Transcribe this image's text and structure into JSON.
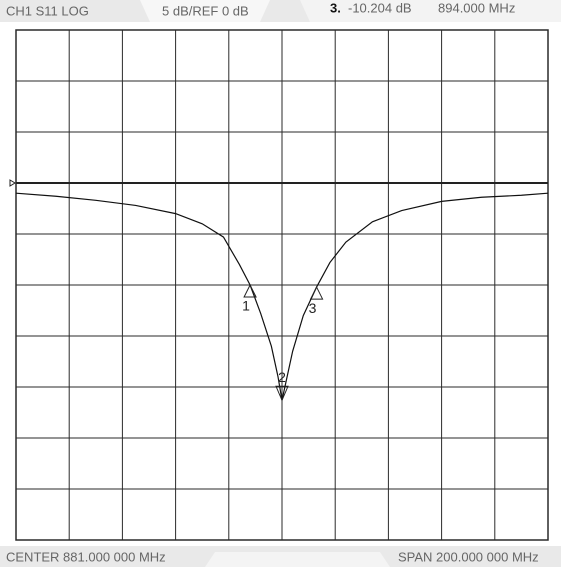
{
  "chart_data": {
    "type": "line",
    "channel_label": "CH1  S11  LOG",
    "scale_label": "5 dB/REF 0 dB",
    "readout": [
      "3.",
      "-10.204 dB",
      "894.000 MHz"
    ],
    "center_label": "CENTER 881.000 000 MHz",
    "span_label": "SPAN 200.000 000 MHz",
    "x": [
      781,
      796,
      811,
      826,
      841,
      851,
      859,
      865,
      869,
      873,
      877,
      879.5,
      881,
      882.5,
      885,
      889,
      894,
      899,
      905,
      915,
      926,
      941,
      956,
      971,
      981
    ],
    "values": [
      -1.0,
      -1.3,
      -1.7,
      -2.2,
      -3.0,
      -4.0,
      -5.3,
      -8.0,
      -10.0,
      -12.8,
      -16.0,
      -19.0,
      -21.3,
      -19.5,
      -16.5,
      -13.0,
      -10.204,
      -7.8,
      -5.8,
      -3.8,
      -2.7,
      -1.8,
      -1.4,
      -1.2,
      -1.0
    ],
    "color": "#111111",
    "markers": [
      {
        "label": "1",
        "x": 869,
        "value": -10.0
      },
      {
        "label": "2",
        "x": 881,
        "value": -21.3
      },
      {
        "label": "3",
        "x": 894,
        "value": -10.204
      }
    ],
    "reference": 0,
    "xlim": [
      781,
      981
    ],
    "xticks": [
      781,
      801,
      821,
      841,
      861,
      881,
      901,
      921,
      941,
      961,
      981
    ],
    "ylim": [
      -35,
      15
    ],
    "yticks": [
      -35,
      -30,
      -25,
      -20,
      -15,
      -10,
      -5,
      0,
      5,
      10,
      15
    ],
    "grid": true
  }
}
